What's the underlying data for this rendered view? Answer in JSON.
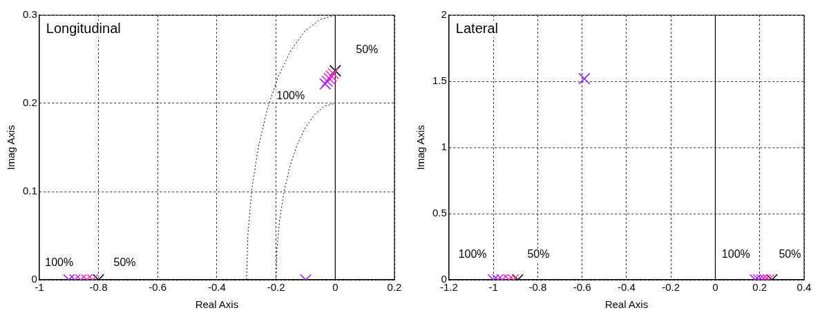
{
  "chart_data": [
    {
      "type": "scatter",
      "title": "Longitudinal",
      "xlabel": "Real Axis",
      "ylabel": "Imag Axis",
      "xlim": [
        -1,
        0.2
      ],
      "xticks": [
        -1,
        -0.8,
        -0.6,
        -0.4,
        -0.2,
        0,
        0.2
      ],
      "ylim": [
        0,
        0.3
      ],
      "yticks": [
        0,
        0.1,
        0.2,
        0.3
      ],
      "grid": true,
      "marker": "cross",
      "series": [
        {
          "color": "#000000",
          "x": [
            -0.8,
            null,
            0
          ],
          "values": [
            0,
            null,
            0.237
          ]
        },
        {
          "color": "#ff3399",
          "x": [
            -0.82,
            null,
            -0.007
          ],
          "values": [
            0,
            null,
            0.234
          ]
        },
        {
          "color": "#ff22cc",
          "x": [
            -0.84,
            null,
            -0.014
          ],
          "values": [
            0,
            null,
            0.231
          ]
        },
        {
          "color": "#ee22ee",
          "x": [
            -0.86,
            null,
            -0.02
          ],
          "values": [
            0,
            null,
            0.228
          ]
        },
        {
          "color": "#cc22ff",
          "x": [
            -0.88,
            null,
            -0.027
          ],
          "values": [
            0,
            null,
            0.225
          ]
        },
        {
          "color": "#9922ff",
          "x": [
            -0.9,
            -0.1,
            -0.034
          ],
          "values": [
            0,
            0,
            0.222
          ]
        },
        {
          "type": "line",
          "color": "#000000",
          "line_style": "dotted",
          "marker": "none",
          "x": [
            -0.3,
            -0.295,
            -0.282,
            -0.26,
            -0.23,
            -0.193,
            -0.15,
            -0.103,
            -0.052,
            0
          ],
          "values": [
            0,
            0.052,
            0.103,
            0.15,
            0.193,
            0.23,
            0.26,
            0.282,
            0.295,
            0.3
          ]
        },
        {
          "type": "line",
          "color": "#000000",
          "line_style": "dotted",
          "marker": "none",
          "x": [
            -0.2,
            -0.197,
            -0.188,
            -0.173,
            -0.153,
            -0.129,
            -0.1,
            -0.068,
            -0.035,
            0
          ],
          "values": [
            0,
            0.035,
            0.068,
            0.1,
            0.129,
            0.153,
            0.173,
            0.188,
            0.197,
            0.2
          ]
        }
      ],
      "ref_lines": [
        {
          "axis": "x",
          "value": 0,
          "color": "#000000",
          "line_style": "solid"
        }
      ],
      "annotations": [
        "100%",
        "50%",
        "100%",
        "50%"
      ]
    },
    {
      "type": "scatter",
      "title": "Lateral",
      "xlabel": "Real Axis",
      "ylabel": "Imag Axis",
      "xlim": [
        -1.2,
        0.4
      ],
      "xticks": [
        -1.2,
        -1,
        -0.8,
        -0.6,
        -0.4,
        -0.2,
        0,
        0.2,
        0.4
      ],
      "ylim": [
        0,
        2
      ],
      "yticks": [
        0,
        0.5,
        1,
        1.5,
        2
      ],
      "grid": true,
      "marker": "cross",
      "series": [
        {
          "color": "#000000",
          "x": [
            -0.89,
            0.255,
            null
          ],
          "values": [
            0,
            0,
            null
          ]
        },
        {
          "color": "#ff3399",
          "x": [
            -0.91,
            0.24,
            null
          ],
          "values": [
            0,
            0,
            null
          ]
        },
        {
          "color": "#ff22cc",
          "x": [
            -0.93,
            0.225,
            null
          ],
          "values": [
            0,
            0,
            null
          ]
        },
        {
          "color": "#ee22ee",
          "x": [
            -0.96,
            0.21,
            null
          ],
          "values": [
            0,
            0,
            null
          ]
        },
        {
          "color": "#cc22ff",
          "x": [
            -0.98,
            0.195,
            null
          ],
          "values": [
            0,
            0,
            null
          ]
        },
        {
          "color": "#9922ff",
          "x": [
            -1,
            0.18,
            -0.59
          ],
          "values": [
            0,
            0,
            1.52
          ]
        }
      ],
      "ref_lines": [
        {
          "axis": "x",
          "value": 0,
          "color": "#000000",
          "line_style": "solid"
        }
      ],
      "annotations": [
        "100%",
        "50%",
        "100%",
        "50%"
      ]
    }
  ]
}
